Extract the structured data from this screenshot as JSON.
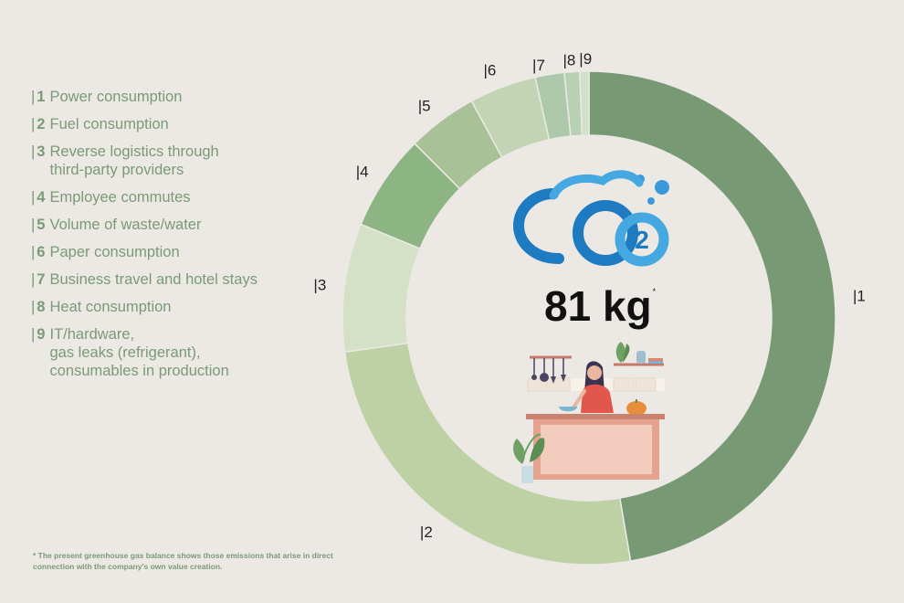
{
  "legend": [
    {
      "num": "1",
      "label": "Power consumption"
    },
    {
      "num": "2",
      "label": "Fuel consumption"
    },
    {
      "num": "3",
      "label": "Reverse logistics through\nthird-party providers"
    },
    {
      "num": "4",
      "label": "Employee commutes"
    },
    {
      "num": "5",
      "label": "Volume of waste/water"
    },
    {
      "num": "6",
      "label": "Paper consumption"
    },
    {
      "num": "7",
      "label": "Business travel and hotel stays"
    },
    {
      "num": "8",
      "label": "Heat consumption"
    },
    {
      "num": "9",
      "label": "IT/hardware,\ngas leaks (refrigerant),\nconsumables in production"
    }
  ],
  "center": {
    "value": "81 kg",
    "asterisk": "*",
    "logo_text": "CO2"
  },
  "footnote": "* The present greenhouse gas balance shows those emissions that arise in direct\n   connection with the company's own value creation.",
  "chart_data": {
    "type": "pie",
    "subtype": "donut",
    "categories": [
      "1",
      "2",
      "3",
      "4",
      "5",
      "6",
      "7",
      "8",
      "9"
    ],
    "values": [
      47.3,
      25.5,
      8.4,
      6.3,
      4.6,
      4.4,
      1.9,
      1.0,
      0.6
    ],
    "unit": "%",
    "total": "81 kg",
    "colors": [
      "#779a75",
      "#bdd1a5",
      "#d5e1c7",
      "#8db584",
      "#a9c197",
      "#c2d4b4",
      "#adc9a9",
      "#b8d1b4",
      "#d1e0cc"
    ]
  }
}
